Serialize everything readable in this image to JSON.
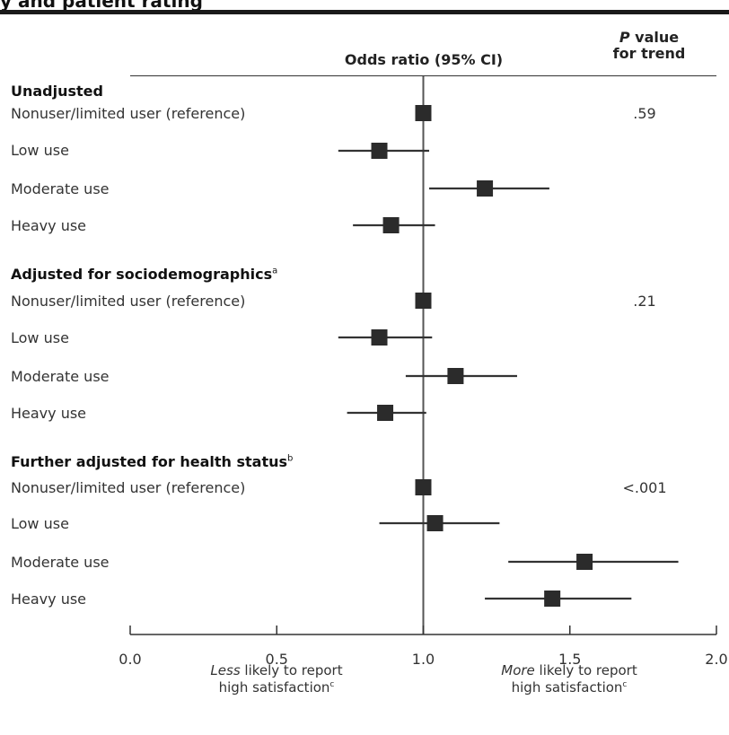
{
  "header": {
    "title_fragment": "y and patient rating",
    "odds_ratio_label": "Odds ratio (95% CI)",
    "p_value_label_italic": "P",
    "p_value_label_rest": " value",
    "p_value_label_line2": "for trend"
  },
  "chart_data": {
    "type": "forest",
    "x_reference_line": 1.0,
    "xlim": [
      0.0,
      2.0
    ],
    "x_ticks": [
      "0.0",
      "0.5",
      "1.0",
      "1.5",
      "2.0"
    ],
    "groups": [
      {
        "title": "Unadjusted",
        "superscript": "",
        "p_value": ".59",
        "rows": [
          {
            "label": "Nonuser/limited user (reference)",
            "or": 1.0,
            "ci": [
              1.0,
              1.0
            ]
          },
          {
            "label": "Low use",
            "or": 0.85,
            "ci": [
              0.71,
              1.02
            ]
          },
          {
            "label": "Moderate use",
            "or": 1.21,
            "ci": [
              1.02,
              1.43
            ]
          },
          {
            "label": "Heavy use",
            "or": 0.89,
            "ci": [
              0.76,
              1.04
            ]
          }
        ]
      },
      {
        "title": "Adjusted for sociodemographics",
        "superscript": "a",
        "p_value": ".21",
        "rows": [
          {
            "label": "Nonuser/limited user (reference)",
            "or": 1.0,
            "ci": [
              1.0,
              1.0
            ]
          },
          {
            "label": "Low use",
            "or": 0.85,
            "ci": [
              0.71,
              1.03
            ]
          },
          {
            "label": "Moderate use",
            "or": 1.11,
            "ci": [
              0.94,
              1.32
            ]
          },
          {
            "label": "Heavy use",
            "or": 0.87,
            "ci": [
              0.74,
              1.01
            ]
          }
        ]
      },
      {
        "title": "Further adjusted for health status",
        "superscript": "b",
        "p_value": "<.001",
        "rows": [
          {
            "label": "Nonuser/limited user (reference)",
            "or": 1.0,
            "ci": [
              1.0,
              1.0
            ]
          },
          {
            "label": "Low use",
            "or": 1.04,
            "ci": [
              0.85,
              1.26
            ]
          },
          {
            "label": "Moderate use",
            "or": 1.55,
            "ci": [
              1.29,
              1.87
            ]
          },
          {
            "label": "Heavy use",
            "or": 1.44,
            "ci": [
              1.21,
              1.71
            ]
          }
        ]
      }
    ]
  },
  "footer": {
    "left_italic": "Less",
    "left_rest": " likely to report",
    "left_line2": "high satisfaction",
    "left_sup": "c",
    "right_italic": "More",
    "right_rest": " likely to report",
    "right_line2": "high satisfaction",
    "right_sup": "c"
  },
  "colors": {
    "marker": "#2b2b2b",
    "line": "#333333",
    "reference_line": "#555555"
  }
}
